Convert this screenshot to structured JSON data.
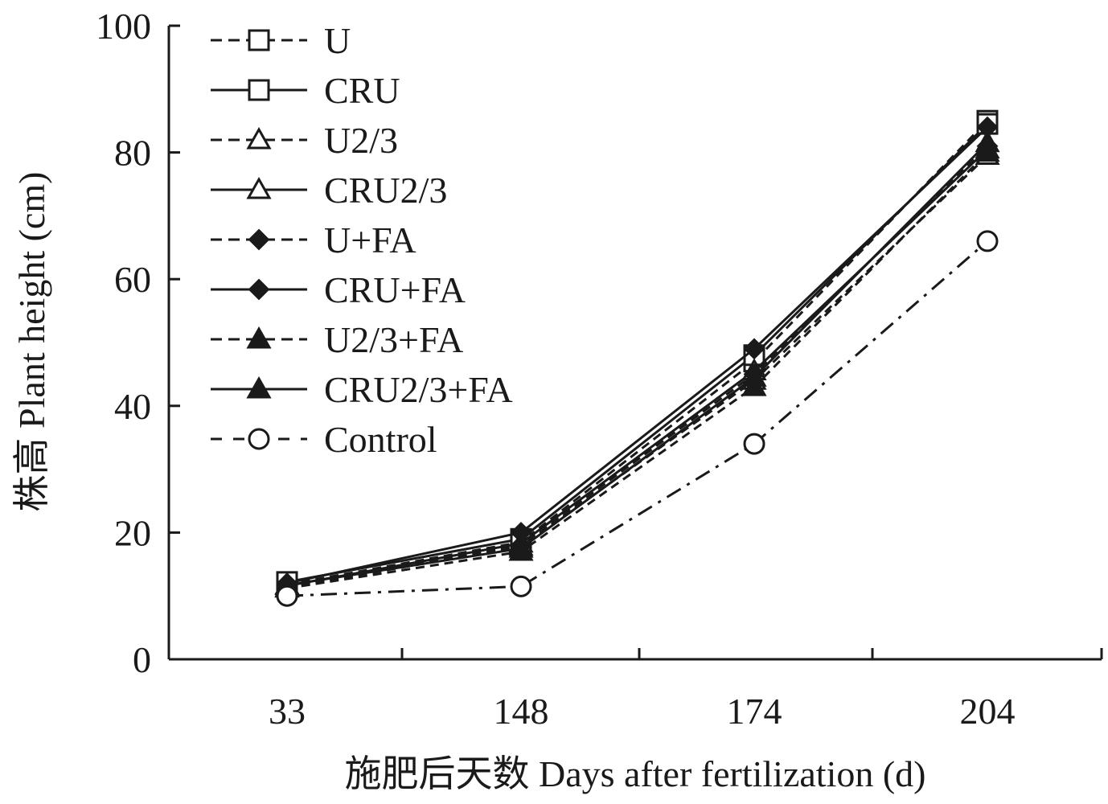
{
  "chart_data": {
    "type": "line",
    "title": "",
    "xlabel": "施肥后天数 Days after fertilization (d)",
    "ylabel": "株高 Plant height (cm)",
    "categories": [
      "33",
      "148",
      "174",
      "204"
    ],
    "ylim": [
      0,
      100
    ],
    "yticks": [
      "0",
      "20",
      "40",
      "60",
      "80",
      "100"
    ],
    "grid": false,
    "legend_position": "top-left",
    "series": [
      {
        "name": "U",
        "values": [
          11.8,
          18.5,
          47.0,
          85.0
        ],
        "line": "dashed",
        "marker": "square-open"
      },
      {
        "name": "CRU",
        "values": [
          12.2,
          19.0,
          48.0,
          84.5
        ],
        "line": "solid",
        "marker": "square-open"
      },
      {
        "name": "U2/3",
        "values": [
          11.3,
          17.8,
          44.0,
          79.5
        ],
        "line": "dashed",
        "marker": "triangle-open"
      },
      {
        "name": "CRU2/3",
        "values": [
          11.6,
          18.3,
          45.5,
          80.5
        ],
        "line": "solid",
        "marker": "triangle-open"
      },
      {
        "name": "U+FA",
        "values": [
          11.5,
          18.0,
          45.0,
          81.0
        ],
        "line": "dashed",
        "marker": "diamond-filled"
      },
      {
        "name": "CRU+FA",
        "values": [
          12.0,
          20.0,
          49.0,
          84.0
        ],
        "line": "solid",
        "marker": "diamond-filled"
      },
      {
        "name": "U2/3+FA",
        "values": [
          11.2,
          17.0,
          43.0,
          80.0
        ],
        "line": "dashed",
        "marker": "triangle-filled"
      },
      {
        "name": "CRU2/3+FA",
        "values": [
          11.7,
          17.5,
          44.5,
          81.5
        ],
        "line": "solid",
        "marker": "triangle-filled"
      },
      {
        "name": "Control",
        "values": [
          10.0,
          11.5,
          34.0,
          66.0
        ],
        "line": "dashdot",
        "marker": "circle-open"
      }
    ]
  }
}
